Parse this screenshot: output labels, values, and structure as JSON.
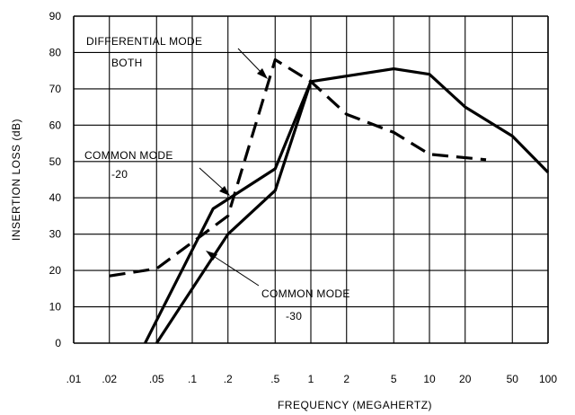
{
  "chart_data": {
    "type": "line",
    "title": "",
    "xlabel": "FREQUENCY (MEGAHERTZ)",
    "ylabel": "INSERTION LOSS (dB)",
    "x_scale": "log",
    "xlim": [
      0.01,
      100
    ],
    "ylim": [
      0,
      90
    ],
    "grid": true,
    "x_ticks": [
      {
        "v": 0.01,
        "label": ".01"
      },
      {
        "v": 0.02,
        "label": ".02"
      },
      {
        "v": 0.05,
        "label": ".05"
      },
      {
        "v": 0.1,
        "label": ".1"
      },
      {
        "v": 0.2,
        "label": ".2"
      },
      {
        "v": 0.5,
        "label": ".5"
      },
      {
        "v": 1,
        "label": "1"
      },
      {
        "v": 2,
        "label": "2"
      },
      {
        "v": 5,
        "label": "5"
      },
      {
        "v": 10,
        "label": "10"
      },
      {
        "v": 20,
        "label": "20"
      },
      {
        "v": 50,
        "label": "50"
      },
      {
        "v": 100,
        "label": "100"
      }
    ],
    "y_ticks": [
      0,
      10,
      20,
      30,
      40,
      50,
      60,
      70,
      80,
      90
    ],
    "series": [
      {
        "style": "dashed",
        "x": [
          0.02,
          0.05,
          0.2,
          0.5,
          1,
          2,
          5,
          10,
          30
        ],
        "y": [
          18.5,
          20.5,
          35,
          78,
          72,
          63,
          58,
          52,
          50.5
        ]
      },
      {
        "style": "solid",
        "x": [
          0.04,
          0.15,
          0.5,
          1,
          2,
          5,
          10,
          20,
          50,
          100
        ],
        "y": [
          0,
          37,
          48,
          72,
          73.5,
          75.5,
          74,
          65,
          57,
          47
        ]
      },
      {
        "style": "solid",
        "x": [
          0.05,
          0.2,
          0.5,
          1
        ],
        "y": [
          0,
          30,
          42,
          72
        ]
      }
    ],
    "annotations": [
      {
        "lines": [
          "DIFFERENTIAL MODE",
          "BOTH"
        ]
      },
      {
        "lines": [
          "COMMON MODE",
          "-20"
        ]
      },
      {
        "lines": [
          "COMMON MODE",
          "-30"
        ]
      }
    ]
  }
}
